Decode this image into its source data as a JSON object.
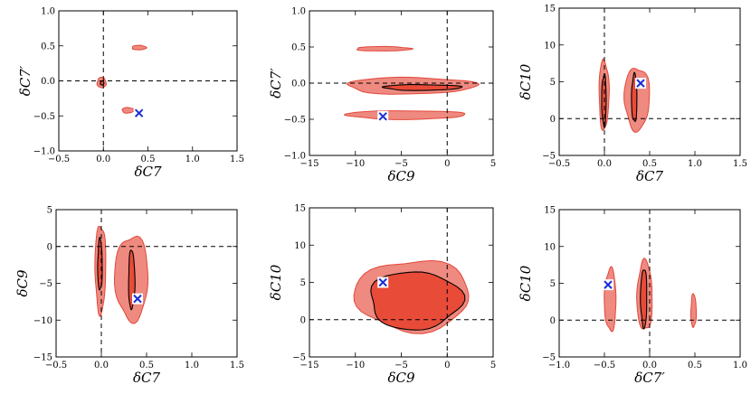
{
  "figure_title": "",
  "chart_data": [
    {
      "type": "scatter",
      "panel": "top-left",
      "xlabel": "δC7",
      "ylabel": "δC7′",
      "xlim": [
        -0.5,
        1.5
      ],
      "ylim": [
        -1.0,
        1.0
      ],
      "xticks": [
        "−0.5",
        "0.0",
        "0.5",
        "1.0",
        "1.5"
      ],
      "yticks": [
        "−1.0",
        "−0.5",
        "0.0",
        "0.5",
        "1.0"
      ],
      "ref_lines": {
        "x": 0,
        "y": 0
      },
      "sm_point": [
        0.4,
        -0.46
      ],
      "outer_regions": [
        {
          "x": [
            -0.07,
            0.03
          ],
          "y": [
            -0.1,
            0.05
          ]
        },
        {
          "x": [
            0.32,
            0.48
          ],
          "y": [
            0.45,
            0.5
          ]
        },
        {
          "x": [
            0.21,
            0.34
          ],
          "y": [
            -0.46,
            -0.38
          ]
        }
      ],
      "inner_regions": [
        {
          "x": [
            -0.03,
            0.0
          ],
          "y": [
            -0.06,
            0.0
          ]
        }
      ]
    },
    {
      "type": "scatter",
      "panel": "top-middle",
      "xlabel": "δC9",
      "ylabel": "δC7′",
      "xlim": [
        -15,
        5
      ],
      "ylim": [
        -1.0,
        1.0
      ],
      "xticks": [
        "−15",
        "−10",
        "−5",
        "0",
        "5"
      ],
      "yticks": [
        "−1.0",
        "−0.5",
        "0.0",
        "0.5",
        "1.0"
      ],
      "ref_lines": {
        "x": 0,
        "y": 0
      },
      "sm_point": [
        -7,
        -0.46
      ],
      "outer_regions": [
        {
          "x": [
            -10,
            -4
          ],
          "y": [
            0.45,
            0.5
          ]
        },
        {
          "x": [
            -11,
            3
          ],
          "y": [
            -0.15,
            0.08
          ]
        },
        {
          "x": [
            -11,
            2
          ],
          "y": [
            -0.5,
            -0.38
          ]
        }
      ],
      "inner_regions": [
        {
          "x": [
            -7,
            1.5
          ],
          "y": [
            -0.1,
            -0.02
          ]
        }
      ]
    },
    {
      "type": "scatter",
      "panel": "top-right",
      "xlabel": "δC7",
      "ylabel": "δC10",
      "xlim": [
        -0.5,
        1.5
      ],
      "ylim": [
        -5,
        15
      ],
      "xticks": [
        "−0.5",
        "0.0",
        "0.5",
        "1.0",
        "1.5"
      ],
      "yticks": [
        "−5",
        "0",
        "5",
        "10",
        "15"
      ],
      "ref_lines": {
        "x": 0,
        "y": 0
      },
      "sm_point": [
        0.4,
        4.8
      ],
      "outer_regions": [
        {
          "x": [
            -0.06,
            0.05
          ],
          "y": [
            -1.5,
            8
          ]
        },
        {
          "x": [
            0.22,
            0.5
          ],
          "y": [
            -1.5,
            7
          ]
        }
      ],
      "inner_regions": [
        {
          "x": [
            -0.03,
            0.02
          ],
          "y": [
            -1,
            6
          ]
        },
        {
          "x": [
            0.3,
            0.36
          ],
          "y": [
            -0.5,
            6
          ]
        }
      ]
    },
    {
      "type": "scatter",
      "panel": "bottom-left",
      "xlabel": "δC7",
      "ylabel": "δC9",
      "xlim": [
        -0.5,
        1.5
      ],
      "ylim": [
        -15,
        5
      ],
      "xticks": [
        "−0.5",
        "0.0",
        "0.5",
        "1.0",
        "1.5"
      ],
      "yticks": [
        "−15",
        "−10",
        "−5",
        "0",
        "5"
      ],
      "ref_lines": {
        "x": 0,
        "y": 0
      },
      "sm_point": [
        0.4,
        -7.1
      ],
      "outer_regions": [
        {
          "x": [
            -0.07,
            0.05
          ],
          "y": [
            -9,
            3
          ]
        },
        {
          "x": [
            0.15,
            0.52
          ],
          "y": [
            -10,
            1.5
          ]
        }
      ],
      "inner_regions": [
        {
          "x": [
            -0.04,
            0.01
          ],
          "y": [
            -6,
            1
          ]
        },
        {
          "x": [
            0.3,
            0.37
          ],
          "y": [
            -8.5,
            -0.5
          ]
        }
      ]
    },
    {
      "type": "scatter",
      "panel": "bottom-middle",
      "xlabel": "δC9",
      "ylabel": "δC10",
      "xlim": [
        -15,
        5
      ],
      "ylim": [
        -5,
        15
      ],
      "xticks": [
        "−15",
        "−10",
        "−5",
        "0",
        "5"
      ],
      "yticks": [
        "−5",
        "0",
        "5",
        "10",
        "15"
      ],
      "ref_lines": {
        "x": 0,
        "y": 0
      },
      "sm_point": [
        -7,
        5
      ],
      "outer_regions": [
        {
          "x": [
            -10,
            2.5
          ],
          "y": [
            -1.5,
            8
          ]
        }
      ],
      "inner_regions": [
        {
          "x": [
            -8.5,
            1.5
          ],
          "y": [
            -1.3,
            6.5
          ]
        }
      ]
    },
    {
      "type": "scatter",
      "panel": "bottom-right",
      "xlabel": "δC7′",
      "ylabel": "δC10",
      "xlim": [
        -1.0,
        1.0
      ],
      "ylim": [
        -5,
        15
      ],
      "xticks": [
        "−1.0",
        "−0.5",
        "0.0",
        "0.5",
        "1.0"
      ],
      "yticks": [
        "−5",
        "0",
        "5",
        "10",
        "15"
      ],
      "ref_lines": {
        "x": 0,
        "y": 0
      },
      "sm_point": [
        -0.46,
        4.8
      ],
      "outer_regions": [
        {
          "x": [
            -0.5,
            -0.37
          ],
          "y": [
            -1.5,
            7
          ]
        },
        {
          "x": [
            -0.14,
            0.03
          ],
          "y": [
            -1.5,
            8
          ]
        },
        {
          "x": [
            0.46,
            0.51
          ],
          "y": [
            -1,
            3.5
          ]
        }
      ],
      "inner_regions": [
        {
          "x": [
            -0.1,
            -0.03
          ],
          "y": [
            -1,
            7
          ]
        }
      ]
    }
  ]
}
